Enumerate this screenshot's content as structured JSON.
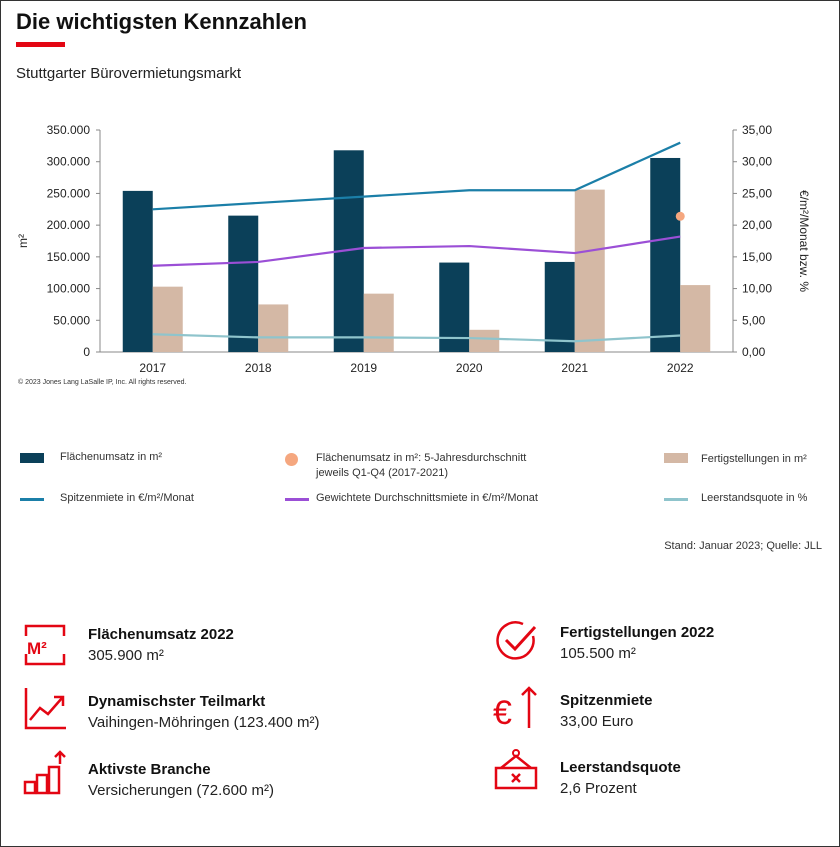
{
  "header": {
    "title": "Die wichtigsten Kennzahlen",
    "subtitle": "Stuttgarter Bürovermietungsmarkt",
    "accent_color": "#e30613"
  },
  "chart_data": {
    "type": "bar",
    "categories": [
      "2017",
      "2018",
      "2019",
      "2020",
      "2021",
      "2022"
    ],
    "ylabel_left": "m²",
    "ylabel_right": "€/m²/Monat bzw. %",
    "ylim_left": [
      0,
      350000
    ],
    "ylim_right": [
      0,
      35
    ],
    "yticks_left": [
      "0",
      "50.000",
      "100.000",
      "150.000",
      "200.000",
      "250.000",
      "300.000",
      "350.000"
    ],
    "yticks_right": [
      "0,00",
      "5,00",
      "10,00",
      "15,00",
      "20,00",
      "25,00",
      "30,00",
      "35,00"
    ],
    "series": [
      {
        "name": "Flächenumsatz in m²",
        "kind": "bar",
        "axis": "left",
        "color": "#0b4059",
        "values": [
          254000,
          215000,
          318000,
          141000,
          142000,
          305900
        ]
      },
      {
        "name": "Fertigstellungen in m²",
        "kind": "bar",
        "axis": "left",
        "color": "#d4b8a5",
        "values": [
          103000,
          75000,
          92000,
          35000,
          256000,
          105500
        ]
      },
      {
        "name": "Spitzenmiete in €/m²/Monat",
        "kind": "line",
        "axis": "right",
        "color": "#1b7fa8",
        "values": [
          22.5,
          23.5,
          24.5,
          25.5,
          25.5,
          33.0
        ]
      },
      {
        "name": "Gewichtete Durchschnittsmiete in €/m²/Monat",
        "kind": "line",
        "axis": "right",
        "color": "#9b4fd6",
        "values": [
          13.6,
          14.2,
          16.4,
          16.7,
          15.6,
          18.2
        ]
      },
      {
        "name": "Leerstandsquote in %",
        "kind": "line",
        "axis": "right",
        "color": "#8fc4cc",
        "values": [
          2.8,
          2.3,
          2.3,
          2.2,
          1.7,
          2.6
        ]
      },
      {
        "name": "Flächenumsatz in m²: 5-Jahresdurchschnitt jeweils Q1-Q4 (2017-2021)",
        "kind": "point",
        "axis": "left",
        "color": "#f5a77f",
        "x": "2022",
        "value": 214000
      }
    ],
    "copyright": "© 2023 Jones Lang LaSalle IP, Inc. All rights reserved."
  },
  "legend": [
    {
      "label": "Flächenumsatz in m²",
      "kind": "bar",
      "color": "#0b4059"
    },
    {
      "label": "Flächenumsatz in m²: 5-Jahresdurchschnitt",
      "label2": "jeweils Q1-Q4 (2017-2021)",
      "kind": "dot",
      "color": "#f5a77f"
    },
    {
      "label": "Fertigstellungen in m²",
      "kind": "bar",
      "color": "#d4b8a5"
    },
    {
      "label": "Spitzenmiete in €/m²/Monat",
      "kind": "line",
      "color": "#1b7fa8"
    },
    {
      "label": "Gewichtete Durchschnittsmiete in €/m²/Monat",
      "kind": "line",
      "color": "#9b4fd6"
    },
    {
      "label": "Leerstandsquote in %",
      "kind": "line",
      "color": "#8fc4cc"
    }
  ],
  "source": "Stand: Januar 2023; Quelle: JLL",
  "kpis": [
    {
      "icon": "m2-icon",
      "label": "Flächenumsatz 2022",
      "value": "305.900 m²"
    },
    {
      "icon": "checkmark-icon",
      "label": "Fertigstellungen 2022",
      "value": "105.500 m²"
    },
    {
      "icon": "trend-chart-icon",
      "label": "Dynamischster Teilmarkt",
      "value": "Vaihingen-Möhringen (123.400 m²)"
    },
    {
      "icon": "euro-arrow-icon",
      "label": "Spitzenmiete",
      "value": "33,00 Euro"
    },
    {
      "icon": "bar-steps-icon",
      "label": "Aktivste Branche",
      "value": "Versicherungen (72.600 m²)"
    },
    {
      "icon": "vacancy-sign-icon",
      "label": "Leerstandsquote",
      "value": "2,6 Prozent"
    }
  ]
}
